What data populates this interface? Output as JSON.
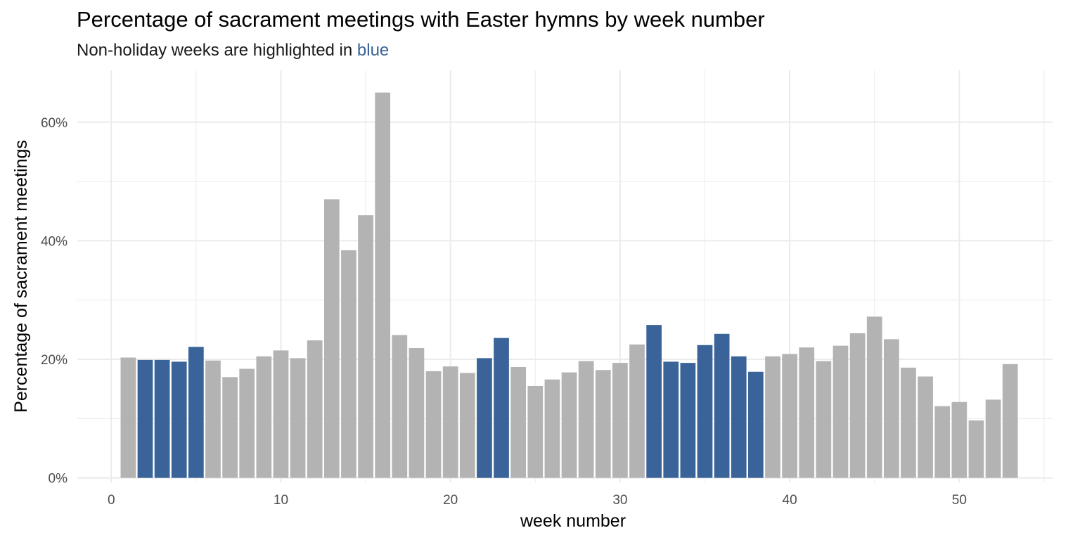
{
  "chart_data": {
    "type": "bar",
    "title": "Percentage of sacrament meetings with Easter hymns by week number",
    "subtitle_prefix": "Non-holiday weeks are highlighted in ",
    "subtitle_highlight": "blue",
    "xlabel": "week number",
    "ylabel": "Percentage of sacrament meetings",
    "xlim": [
      -2,
      55.5
    ],
    "ylim": [
      -0.0075,
      0.6875
    ],
    "x_ticks": [
      0,
      10,
      20,
      30,
      40,
      50
    ],
    "x_tick_labels": [
      "0",
      "10",
      "20",
      "30",
      "40",
      "50"
    ],
    "y_ticks": [
      0,
      0.2,
      0.4,
      0.6
    ],
    "y_tick_labels": [
      "0%",
      "20%",
      "40%",
      "60%"
    ],
    "grid": true,
    "colors": {
      "holiday": "#b3b3b3",
      "non_holiday": "#3a6499"
    },
    "weeks": [
      1,
      2,
      3,
      4,
      5,
      6,
      7,
      8,
      9,
      10,
      11,
      12,
      13,
      14,
      15,
      16,
      17,
      18,
      19,
      20,
      21,
      22,
      23,
      24,
      25,
      26,
      27,
      28,
      29,
      30,
      31,
      32,
      33,
      34,
      35,
      36,
      37,
      38,
      39,
      40,
      41,
      42,
      43,
      44,
      45,
      46,
      47,
      48,
      49,
      50,
      51,
      52,
      53
    ],
    "values": [
      0.203,
      0.199,
      0.199,
      0.196,
      0.221,
      0.198,
      0.17,
      0.184,
      0.205,
      0.215,
      0.202,
      0.232,
      0.47,
      0.384,
      0.443,
      0.65,
      0.241,
      0.219,
      0.18,
      0.188,
      0.177,
      0.202,
      0.236,
      0.187,
      0.155,
      0.166,
      0.178,
      0.197,
      0.182,
      0.194,
      0.225,
      0.258,
      0.196,
      0.194,
      0.224,
      0.243,
      0.205,
      0.179,
      0.205,
      0.209,
      0.22,
      0.197,
      0.223,
      0.244,
      0.272,
      0.234,
      0.186,
      0.171,
      0.121,
      0.128,
      0.097,
      0.132,
      0.192
    ],
    "non_holiday": [
      false,
      true,
      true,
      true,
      true,
      false,
      false,
      false,
      false,
      false,
      false,
      false,
      false,
      false,
      false,
      false,
      false,
      false,
      false,
      false,
      false,
      true,
      true,
      false,
      false,
      false,
      false,
      false,
      false,
      false,
      false,
      true,
      true,
      true,
      true,
      true,
      true,
      true,
      false,
      false,
      false,
      false,
      false,
      false,
      false,
      false,
      false,
      false,
      false,
      false,
      false,
      false,
      false
    ]
  }
}
